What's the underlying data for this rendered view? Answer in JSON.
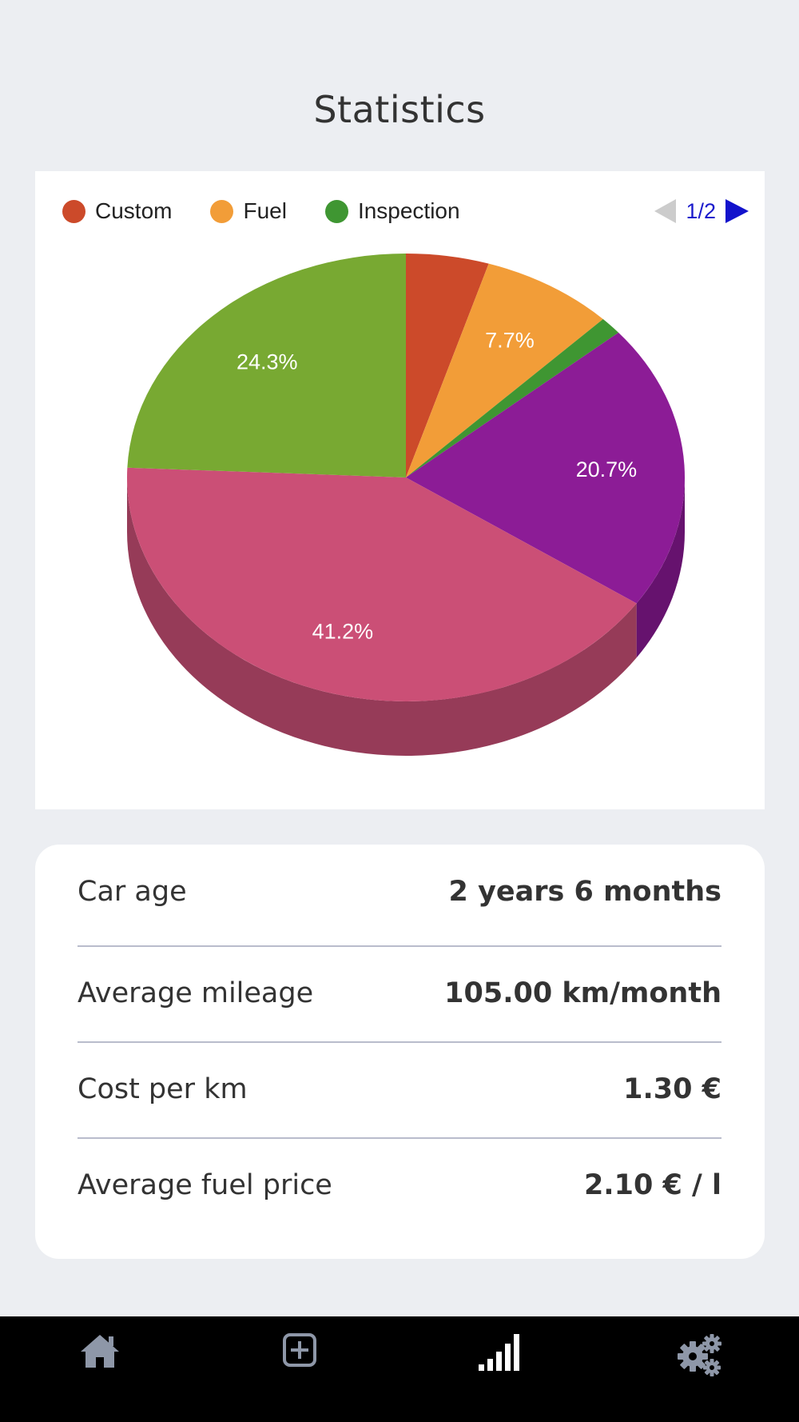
{
  "page": {
    "title": "Statistics"
  },
  "legend": {
    "items": [
      {
        "label": "Custom",
        "color": "#cc4a2a"
      },
      {
        "label": "Fuel",
        "color": "#f29d38"
      },
      {
        "label": "Inspection",
        "color": "#3f9632"
      }
    ],
    "page_indicator": "1/2"
  },
  "chart_data": {
    "type": "pie",
    "style": "3d",
    "slices": [
      {
        "color": "#cc4a2a",
        "value": 4.8,
        "label": "",
        "color_side": "#9e3820"
      },
      {
        "color": "#f29d38",
        "value": 7.7,
        "label": "7.7%",
        "color_side": "#c07a2a"
      },
      {
        "color": "#3f9632",
        "value": 1.3,
        "label": "",
        "color_side": "#2e6f25"
      },
      {
        "color": "#8c1c96",
        "value": 20.7,
        "label": "20.7%",
        "color_side": "#66126e"
      },
      {
        "color": "#cb4f76",
        "value": 41.2,
        "label": "41.2%",
        "color_side": "#963b58"
      },
      {
        "color": "#78a932",
        "value": 24.3,
        "label": "24.3%",
        "color_side": "#5a8025"
      }
    ]
  },
  "stats": [
    {
      "label": "Car age",
      "value": "2 years 6 months"
    },
    {
      "label": "Average mileage",
      "value": "105.00 km/month"
    },
    {
      "label": "Cost per km",
      "value": "1.30 €"
    },
    {
      "label": "Average fuel price",
      "value": "2.10 € / l"
    }
  ],
  "nav": {
    "items": [
      {
        "icon": "home-icon",
        "active": false
      },
      {
        "icon": "add-icon",
        "active": false
      },
      {
        "icon": "statistics-icon",
        "active": true
      },
      {
        "icon": "settings-icon",
        "active": false
      }
    ]
  }
}
